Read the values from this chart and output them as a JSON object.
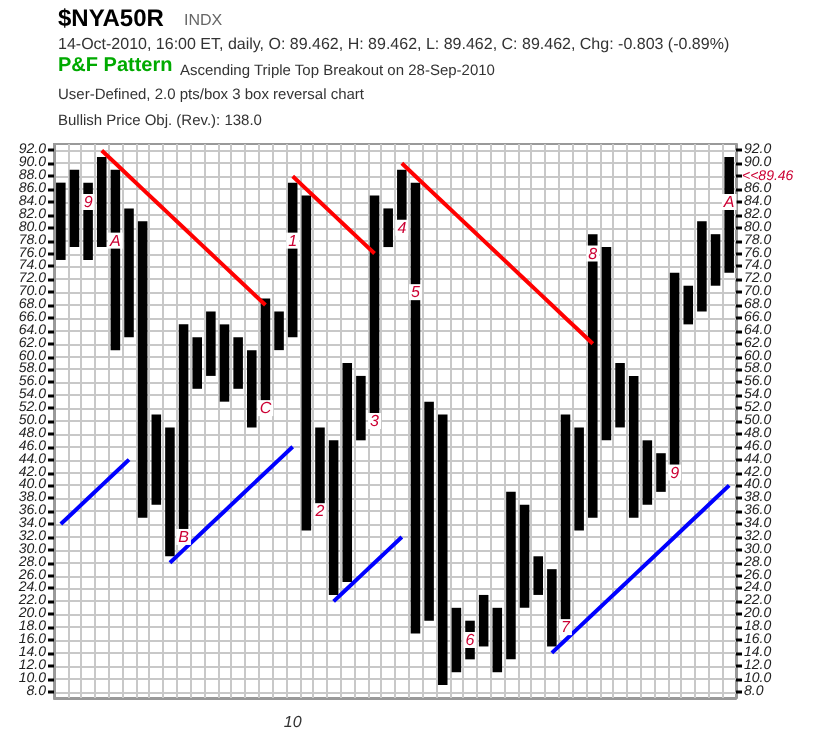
{
  "chart_data": {
    "type": "bar",
    "title": "$NYA50R",
    "subtitle": "14-Oct-2010, 16:00 ET, daily, O: 89.462, H: 89.462, L: 89.462, C: 89.462, Chg: -0.803 (-0.89%)",
    "annotations": [
      "INDX",
      "P&F Pattern",
      "Ascending Triple Top Breakout on 28-Sep-2010",
      "User-Defined, 2.0 pts/box 3 box reversal chart",
      "Bullish Price Obj. (Rev.): 138.0",
      "<<89.46",
      "9",
      "A",
      "B",
      "C",
      "1",
      "2",
      "3",
      "4",
      "5",
      "6",
      "7",
      "8",
      "9",
      "A"
    ],
    "categories": [
      null,
      null,
      null,
      null,
      null,
      null,
      null,
      null,
      null,
      null,
      null,
      null,
      null,
      null,
      null,
      null,
      null,
      "10",
      null,
      null,
      null,
      null,
      null,
      null,
      null,
      null,
      null,
      null,
      null,
      null,
      null,
      null,
      null,
      null,
      null,
      null,
      null,
      null,
      null,
      null,
      null,
      null,
      null,
      null,
      null,
      null,
      null,
      null,
      null,
      null
    ],
    "series": [
      {
        "color": "#000000",
        "base": [
          75,
          77,
          75,
          77,
          61,
          63,
          35,
          37,
          29,
          31,
          55,
          57,
          53,
          55,
          49,
          51,
          61,
          63,
          33,
          35,
          23,
          25,
          47,
          49,
          77,
          79,
          17,
          19,
          9,
          11,
          13,
          15,
          11,
          13,
          21,
          23,
          15,
          17,
          33,
          35,
          47,
          49,
          35,
          37,
          39,
          41,
          65,
          67,
          71,
          73
        ],
        "values": [
          12,
          12,
          12,
          14,
          28,
          20,
          46,
          14,
          20,
          34,
          8,
          10,
          12,
          8,
          12,
          18,
          6,
          24,
          52,
          14,
          24,
          34,
          10,
          36,
          6,
          10,
          70,
          34,
          42,
          10,
          6,
          8,
          10,
          26,
          16,
          6,
          12,
          34,
          16,
          44,
          30,
          10,
          22,
          10,
          6,
          32,
          6,
          14,
          8,
          18
        ]
      },
      {
        "type": "line",
        "color": "#ff0000",
        "values": [
          null,
          null,
          null,
          92,
          90,
          88,
          86,
          84,
          82,
          80,
          78,
          76,
          74,
          72,
          70,
          68,
          null,
          null,
          null,
          null,
          null,
          null,
          null,
          null,
          null,
          null,
          null,
          null,
          null,
          null,
          null,
          null,
          null,
          null,
          null,
          null,
          null,
          null,
          null,
          null,
          null,
          null,
          null,
          null,
          null,
          null,
          null,
          null,
          null,
          null
        ]
      },
      {
        "type": "line",
        "color": "#ff0000",
        "values": [
          null,
          null,
          null,
          null,
          null,
          null,
          null,
          null,
          null,
          null,
          null,
          null,
          null,
          null,
          null,
          null,
          null,
          88,
          86,
          84,
          82,
          80,
          78,
          76,
          null,
          null,
          null,
          null,
          null,
          null,
          null,
          null,
          null,
          null,
          null,
          null,
          null,
          null,
          null,
          null,
          null,
          null,
          null,
          null,
          null,
          null,
          null,
          null,
          null,
          null
        ]
      },
      {
        "type": "line",
        "color": "#ff0000",
        "values": [
          null,
          null,
          null,
          null,
          null,
          null,
          null,
          null,
          null,
          null,
          null,
          null,
          null,
          null,
          null,
          null,
          null,
          null,
          null,
          null,
          null,
          null,
          null,
          null,
          null,
          90,
          88,
          86,
          84,
          82,
          80,
          78,
          76,
          74,
          72,
          70,
          68,
          66,
          64,
          62,
          null,
          null,
          null,
          null,
          null,
          null,
          null,
          null,
          null,
          null
        ]
      },
      {
        "type": "line",
        "color": "#0000ff",
        "values": [
          34,
          36,
          38,
          40,
          42,
          44,
          null,
          null,
          null,
          null,
          null,
          null,
          null,
          null,
          null,
          null,
          null,
          null,
          null,
          null,
          null,
          null,
          null,
          null,
          null,
          null,
          null,
          null,
          null,
          null,
          null,
          null,
          null,
          null,
          null,
          null,
          null,
          null,
          null,
          null,
          null,
          null,
          null,
          null,
          null,
          null,
          null,
          null,
          null,
          null
        ]
      },
      {
        "type": "line",
        "color": "#0000ff",
        "values": [
          null,
          null,
          null,
          null,
          null,
          null,
          null,
          null,
          28,
          30,
          32,
          34,
          36,
          38,
          40,
          42,
          44,
          46,
          null,
          null,
          null,
          null,
          null,
          null,
          null,
          null,
          null,
          null,
          null,
          null,
          null,
          null,
          null,
          null,
          null,
          null,
          null,
          null,
          null,
          null,
          null,
          null,
          null,
          null,
          null,
          null,
          null,
          null,
          null,
          null
        ]
      },
      {
        "type": "line",
        "color": "#0000ff",
        "values": [
          null,
          null,
          null,
          null,
          null,
          null,
          null,
          null,
          null,
          null,
          null,
          null,
          null,
          null,
          null,
          null,
          null,
          null,
          null,
          null,
          22,
          24,
          26,
          28,
          30,
          32,
          null,
          null,
          null,
          null,
          null,
          null,
          null,
          null,
          null,
          null,
          null,
          null,
          null,
          null,
          null,
          null,
          null,
          null,
          null,
          null,
          null,
          null,
          null,
          null
        ]
      },
      {
        "type": "line",
        "color": "#0000ff",
        "values": [
          null,
          null,
          null,
          null,
          null,
          null,
          null,
          null,
          null,
          null,
          null,
          null,
          null,
          null,
          null,
          null,
          null,
          null,
          null,
          null,
          null,
          null,
          null,
          null,
          null,
          null,
          null,
          null,
          null,
          null,
          null,
          null,
          null,
          null,
          null,
          null,
          14,
          16,
          18,
          20,
          22,
          24,
          26,
          28,
          30,
          32,
          34,
          36,
          38,
          40
        ]
      }
    ],
    "ylim": [
      7,
      93
    ],
    "yticks": [
      {
        "value": 8,
        "label": "8.0"
      },
      {
        "value": 10,
        "label": "10.0"
      },
      {
        "value": 12,
        "label": "12.0"
      },
      {
        "value": 14,
        "label": "14.0"
      },
      {
        "value": 16,
        "label": "16.0"
      },
      {
        "value": 18,
        "label": "18.0"
      },
      {
        "value": 20,
        "label": "20.0"
      },
      {
        "value": 22,
        "label": "22.0"
      },
      {
        "value": 24,
        "label": "24.0"
      },
      {
        "value": 26,
        "label": "26.0"
      },
      {
        "value": 28,
        "label": "28.0"
      },
      {
        "value": 30,
        "label": "30.0"
      },
      {
        "value": 32,
        "label": "32.0"
      },
      {
        "value": 34,
        "label": "34.0"
      },
      {
        "value": 36,
        "label": "36.0"
      },
      {
        "value": 38,
        "label": "38.0"
      },
      {
        "value": 40,
        "label": "40.0"
      },
      {
        "value": 42,
        "label": "42.0"
      },
      {
        "value": 44,
        "label": "44.0"
      },
      {
        "value": 46,
        "label": "46.0"
      },
      {
        "value": 48,
        "label": "48.0"
      },
      {
        "value": 50,
        "label": "50.0"
      },
      {
        "value": 52,
        "label": "52.0"
      },
      {
        "value": 54,
        "label": "54.0"
      },
      {
        "value": 56,
        "label": "56.0"
      },
      {
        "value": 58,
        "label": "58.0"
      },
      {
        "value": 60,
        "label": "60.0"
      },
      {
        "value": 62,
        "label": "62.0"
      },
      {
        "value": 64,
        "label": "64.0"
      },
      {
        "value": 66,
        "label": "66.0"
      },
      {
        "value": 68,
        "label": "68.0"
      },
      {
        "value": 70,
        "label": "70.0"
      },
      {
        "value": 72,
        "label": "72.0"
      },
      {
        "value": 74,
        "label": "74.0"
      },
      {
        "value": 76,
        "label": "76.0"
      },
      {
        "value": 78,
        "label": "78.0"
      },
      {
        "value": 80,
        "label": "80.0"
      },
      {
        "value": 82,
        "label": "82.0"
      },
      {
        "value": 84,
        "label": "84.0"
      },
      {
        "value": 86,
        "label": "86.0"
      },
      {
        "value": 88,
        "label": "88.0"
      },
      {
        "value": 90,
        "label": "90.0"
      },
      {
        "value": 92,
        "label": "92.0"
      }
    ],
    "y2lim": [
      7,
      93
    ],
    "y2ticks": [
      {
        "value": 8,
        "label": "8.0"
      },
      {
        "value": 10,
        "label": "10.0"
      },
      {
        "value": 12,
        "label": "12.0"
      },
      {
        "value": 14,
        "label": "14.0"
      },
      {
        "value": 16,
        "label": "16.0"
      },
      {
        "value": 18,
        "label": "18.0"
      },
      {
        "value": 20,
        "label": "20.0"
      },
      {
        "value": 22,
        "label": "22.0"
      },
      {
        "value": 24,
        "label": "24.0"
      },
      {
        "value": 26,
        "label": "26.0"
      },
      {
        "value": 28,
        "label": "28.0"
      },
      {
        "value": 30,
        "label": "30.0"
      },
      {
        "value": 32,
        "label": "32.0"
      },
      {
        "value": 34,
        "label": "34.0"
      },
      {
        "value": 36,
        "label": "36.0"
      },
      {
        "value": 38,
        "label": "38.0"
      },
      {
        "value": 40,
        "label": "40.0"
      },
      {
        "value": 42,
        "label": "42.0"
      },
      {
        "value": 44,
        "label": "44.0"
      },
      {
        "value": 46,
        "label": "46.0"
      },
      {
        "value": 48,
        "label": "48.0"
      },
      {
        "value": 50,
        "label": "50.0"
      },
      {
        "value": 52,
        "label": "52.0"
      },
      {
        "value": 54,
        "label": "54.0"
      },
      {
        "value": 56,
        "label": "56.0"
      },
      {
        "value": 58,
        "label": "58.0"
      },
      {
        "value": 60,
        "label": "60.0"
      },
      {
        "value": 62,
        "label": "62.0"
      },
      {
        "value": 64,
        "label": "64.0"
      },
      {
        "value": 66,
        "label": "66.0"
      },
      {
        "value": 68,
        "label": "68.0"
      },
      {
        "value": 70,
        "label": "70.0"
      },
      {
        "value": 72,
        "label": "72.0"
      },
      {
        "value": 74,
        "label": "74.0"
      },
      {
        "value": 76,
        "label": "76.0"
      },
      {
        "value": 78,
        "label": "78.0"
      },
      {
        "value": 80,
        "label": "80.0"
      },
      {
        "value": 82,
        "label": "82.0"
      },
      {
        "value": 84,
        "label": "84.0"
      },
      {
        "value": 86,
        "label": "86.0"
      },
      {
        "value": 88,
        "label": null
      },
      {
        "value": 90,
        "label": "90.0"
      },
      {
        "value": 92,
        "label": "92.0"
      }
    ],
    "grid": true
  }
}
